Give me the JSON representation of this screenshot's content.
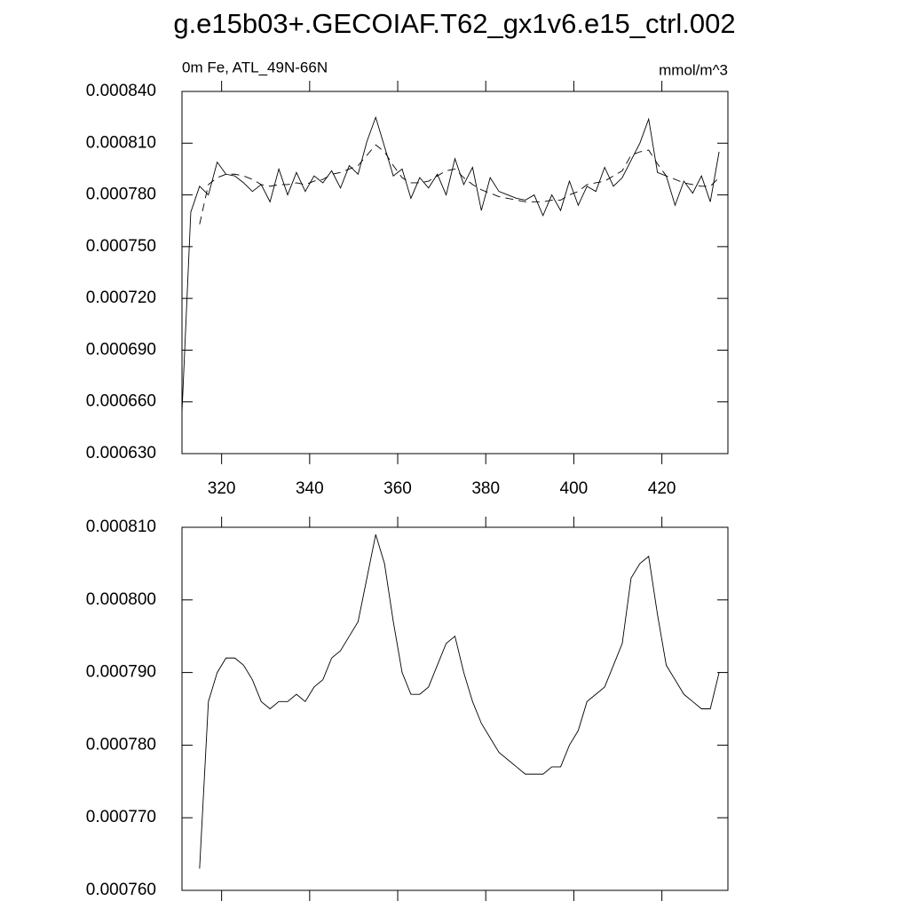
{
  "chart_data": [
    {
      "type": "line",
      "title": "g.e15b03+.GECOIAF.T62_gx1v6.e15_ctrl.002",
      "subtitle": "0m Fe, ATL_49N-66N",
      "units": "mmol/m^3",
      "x": [
        311,
        313,
        315,
        317,
        319,
        321,
        323,
        325,
        327,
        329,
        331,
        333,
        335,
        337,
        339,
        341,
        343,
        345,
        347,
        349,
        351,
        353,
        355,
        357,
        359,
        361,
        363,
        365,
        367,
        369,
        371,
        373,
        375,
        377,
        379,
        381,
        383,
        385,
        387,
        389,
        391,
        393,
        395,
        397,
        399,
        401,
        403,
        405,
        407,
        409,
        411,
        413,
        415,
        417,
        419,
        421,
        423,
        425,
        427,
        429,
        431,
        433
      ],
      "series": [
        {
          "color": "#000000",
          "line_style": "solid",
          "values": [
            0.000654,
            0.00077,
            0.000785,
            0.00078,
            0.000799,
            0.000792,
            0.000791,
            0.000787,
            0.000782,
            0.000786,
            0.000776,
            0.000795,
            0.00078,
            0.000793,
            0.000782,
            0.000791,
            0.000787,
            0.000794,
            0.000784,
            0.000797,
            0.000792,
            0.000811,
            0.000825,
            0.000808,
            0.000791,
            0.000795,
            0.000778,
            0.00079,
            0.000784,
            0.000792,
            0.00078,
            0.000801,
            0.000786,
            0.000796,
            0.000771,
            0.00079,
            0.000782,
            0.00078,
            0.000778,
            0.000777,
            0.00078,
            0.000768,
            0.00078,
            0.000771,
            0.000788,
            0.000774,
            0.000785,
            0.000782,
            0.000796,
            0.000785,
            0.00079,
            0.0008,
            0.00081,
            0.000824,
            0.000793,
            0.000791,
            0.000774,
            0.000788,
            0.000781,
            0.000791,
            0.000776,
            0.000805
          ]
        },
        {
          "color": "#000000",
          "line_style": "dashed",
          "values": [
            null,
            null,
            0.000763,
            0.000786,
            0.00079,
            0.000792,
            0.000792,
            0.000791,
            0.000789,
            0.000786,
            0.000785,
            0.000786,
            0.000786,
            0.000787,
            0.000786,
            0.000788,
            0.000789,
            0.000792,
            0.000793,
            0.000795,
            0.000797,
            0.000803,
            0.000809,
            0.000805,
            0.000797,
            0.00079,
            0.000787,
            0.000787,
            0.000788,
            0.000791,
            0.000794,
            0.000795,
            0.00079,
            0.000786,
            0.000783,
            0.000781,
            0.000779,
            0.000778,
            0.000777,
            0.000776,
            0.000776,
            0.000776,
            0.000777,
            0.000777,
            0.00078,
            0.000782,
            0.000786,
            0.000787,
            0.000788,
            0.000791,
            0.000794,
            0.000803,
            0.000805,
            0.000806,
            0.000798,
            0.000791,
            0.000789,
            0.000787,
            0.000786,
            0.000785,
            0.000785,
            0.00079
          ]
        }
      ],
      "xlim": [
        311,
        435
      ],
      "xticks": [
        320,
        340,
        360,
        380,
        400,
        420
      ],
      "xtick_labels": true,
      "ylim": [
        0.00063,
        0.00084
      ],
      "yticks": [
        {
          "value": 0.00063,
          "label": "0.000630"
        },
        {
          "value": 0.00066,
          "label": "0.000660"
        },
        {
          "value": 0.00069,
          "label": "0.000690"
        },
        {
          "value": 0.00072,
          "label": "0.000720"
        },
        {
          "value": 0.00075,
          "label": "0.000750"
        },
        {
          "value": 0.00078,
          "label": "0.000780"
        },
        {
          "value": 0.00081,
          "label": "0.000810"
        },
        {
          "value": 0.00084,
          "label": "0.000840"
        }
      ]
    },
    {
      "type": "line",
      "x": [
        315,
        317,
        319,
        321,
        323,
        325,
        327,
        329,
        331,
        333,
        335,
        337,
        339,
        341,
        343,
        345,
        347,
        349,
        351,
        353,
        355,
        357,
        359,
        361,
        363,
        365,
        367,
        369,
        371,
        373,
        375,
        377,
        379,
        381,
        383,
        385,
        387,
        389,
        391,
        393,
        395,
        397,
        399,
        401,
        403,
        405,
        407,
        409,
        411,
        413,
        415,
        417,
        419,
        421,
        423,
        425,
        427,
        429,
        431,
        433
      ],
      "series": [
        {
          "color": "#000000",
          "line_style": "solid",
          "values": [
            0.000763,
            0.000786,
            0.00079,
            0.000792,
            0.000792,
            0.000791,
            0.000789,
            0.000786,
            0.000785,
            0.000786,
            0.000786,
            0.000787,
            0.000786,
            0.000788,
            0.000789,
            0.000792,
            0.000793,
            0.000795,
            0.000797,
            0.000803,
            0.000809,
            0.000805,
            0.000797,
            0.00079,
            0.000787,
            0.000787,
            0.000788,
            0.000791,
            0.000794,
            0.000795,
            0.00079,
            0.000786,
            0.000783,
            0.000781,
            0.000779,
            0.000778,
            0.000777,
            0.000776,
            0.000776,
            0.000776,
            0.000777,
            0.000777,
            0.00078,
            0.000782,
            0.000786,
            0.000787,
            0.000788,
            0.000791,
            0.000794,
            0.000803,
            0.000805,
            0.000806,
            0.000798,
            0.000791,
            0.000789,
            0.000787,
            0.000786,
            0.000785,
            0.000785,
            0.00079
          ]
        }
      ],
      "xlim": [
        311,
        435
      ],
      "xticks": [
        320,
        340,
        360,
        380,
        400,
        420
      ],
      "xtick_labels": false,
      "ylim": [
        0.00076,
        0.00081
      ],
      "yticks": [
        {
          "value": 0.00076,
          "label": "0.000760"
        },
        {
          "value": 0.00077,
          "label": "0.000770"
        },
        {
          "value": 0.00078,
          "label": "0.000780"
        },
        {
          "value": 0.00079,
          "label": "0.000790"
        },
        {
          "value": 0.0008,
          "label": "0.000800"
        },
        {
          "value": 0.00081,
          "label": "0.000810"
        }
      ]
    }
  ]
}
